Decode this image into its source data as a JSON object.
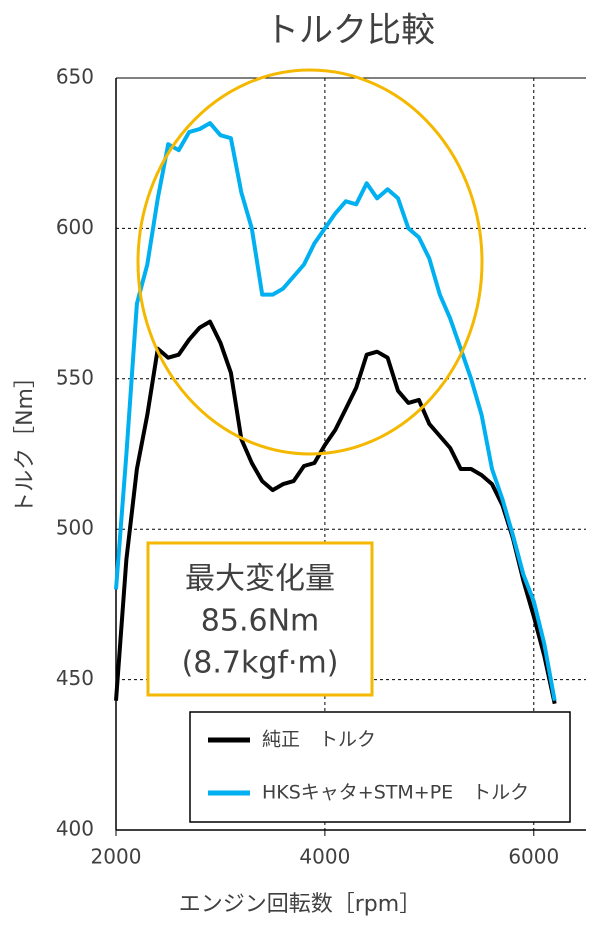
{
  "chart_data": {
    "type": "line",
    "title": "トルク比較",
    "x_label": "エンジン回転数［rpm］",
    "y_label": "トルク［Nm］",
    "x": [
      2000,
      2100,
      2200,
      2300,
      2400,
      2500,
      2600,
      2700,
      2800,
      2900,
      3000,
      3100,
      3200,
      3300,
      3400,
      3500,
      3600,
      3700,
      3800,
      3900,
      4000,
      4100,
      4200,
      4300,
      4400,
      4500,
      4600,
      4700,
      4800,
      4900,
      5000,
      5100,
      5200,
      5300,
      5400,
      5500,
      5600,
      5700,
      5800,
      5900,
      6000,
      6100,
      6200
    ],
    "series": [
      {
        "name": "純正　トルク",
        "color": "#000000",
        "values": [
          443,
          490,
          520,
          538,
          560,
          557,
          558,
          563,
          567,
          569,
          562,
          552,
          530,
          522,
          516,
          513,
          515,
          516,
          521,
          522,
          528,
          533,
          540,
          547,
          558,
          559,
          557,
          546,
          542,
          543,
          535,
          531,
          527,
          520,
          520,
          518,
          515,
          508,
          497,
          483,
          471,
          458,
          442
        ]
      },
      {
        "name": "HKSキャタ+STM+PE　トルク",
        "color": "#00b0f0",
        "values": [
          480,
          525,
          575,
          588,
          610,
          628,
          626,
          632,
          633,
          635,
          631,
          630,
          612,
          600,
          578,
          578,
          580,
          584,
          588,
          595,
          600,
          605,
          609,
          608,
          615,
          610,
          613,
          610,
          600,
          597,
          590,
          578,
          570,
          560,
          550,
          538,
          520,
          510,
          498,
          485,
          476,
          462,
          443
        ]
      }
    ],
    "xlim": [
      2000,
      6500
    ],
    "ylim": [
      400,
      650
    ],
    "xticks": [
      2000,
      4000,
      6000
    ],
    "yticks": [
      400,
      450,
      500,
      550,
      600,
      650
    ],
    "grid": true,
    "annotations": [
      "最大変化量",
      "85.6Nm",
      "(8.7kgf·m)"
    ]
  }
}
